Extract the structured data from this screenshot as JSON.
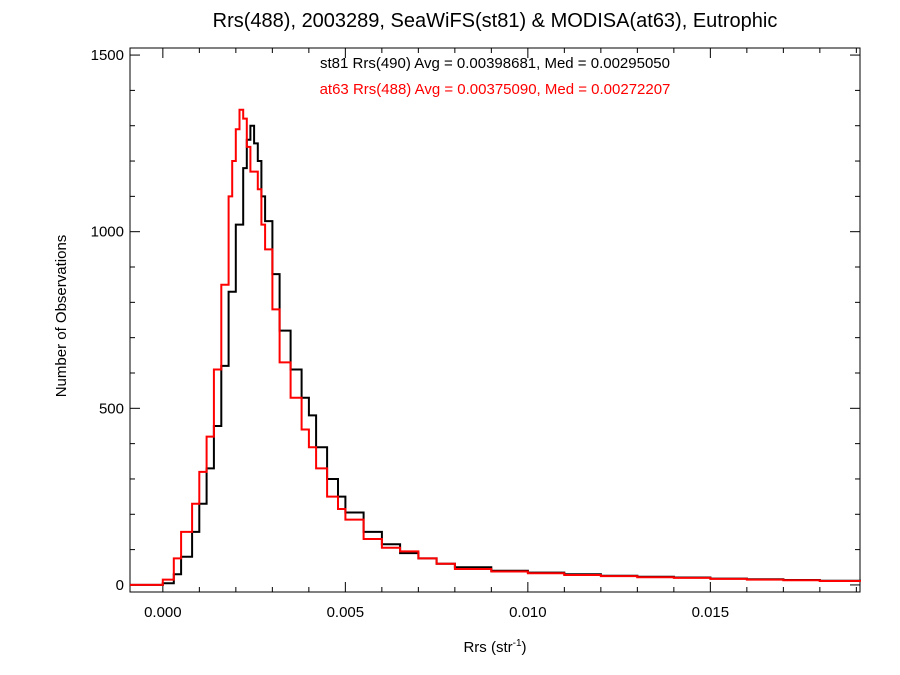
{
  "chart_data": {
    "type": "line",
    "step": true,
    "title": "Rrs(488), 2003289, SeaWiFS(st81) & MODISA(at63), Eutrophic",
    "xlabel_main": "Rrs (str",
    "xlabel_sup": "-1",
    "xlabel_close": ")",
    "ylabel": "Number of Observations",
    "xlim": [
      -0.0009,
      0.0191
    ],
    "ylim": [
      -20,
      1520
    ],
    "xticks": [
      0.0,
      0.005,
      0.01,
      0.015
    ],
    "xtick_labels": [
      "0.000",
      "0.005",
      "0.010",
      "0.015"
    ],
    "xminor_step": 0.001,
    "yticks": [
      0,
      500,
      1000,
      1500
    ],
    "ytick_labels": [
      "0",
      "500",
      "1000",
      "1500"
    ],
    "yminor_step": 100,
    "grid": false,
    "legend_position": "top-center",
    "series": [
      {
        "name": "st81 Rrs(490) Avg = 0.00398681, Med = 0.00295050",
        "color": "#000000",
        "points": [
          [
            -0.0009,
            0
          ],
          [
            0.0,
            5
          ],
          [
            0.0003,
            30
          ],
          [
            0.0005,
            80
          ],
          [
            0.0008,
            150
          ],
          [
            0.001,
            230
          ],
          [
            0.0012,
            330
          ],
          [
            0.0014,
            450
          ],
          [
            0.0016,
            620
          ],
          [
            0.0018,
            830
          ],
          [
            0.002,
            1020
          ],
          [
            0.0022,
            1180
          ],
          [
            0.0023,
            1260
          ],
          [
            0.0024,
            1300
          ],
          [
            0.0025,
            1250
          ],
          [
            0.0026,
            1200
          ],
          [
            0.0027,
            1100
          ],
          [
            0.0028,
            1030
          ],
          [
            0.003,
            880
          ],
          [
            0.0032,
            720
          ],
          [
            0.0035,
            610
          ],
          [
            0.0038,
            530
          ],
          [
            0.004,
            480
          ],
          [
            0.0042,
            390
          ],
          [
            0.0045,
            300
          ],
          [
            0.0048,
            250
          ],
          [
            0.005,
            205
          ],
          [
            0.0055,
            150
          ],
          [
            0.006,
            115
          ],
          [
            0.0065,
            90
          ],
          [
            0.007,
            75
          ],
          [
            0.0075,
            60
          ],
          [
            0.008,
            50
          ],
          [
            0.009,
            40
          ],
          [
            0.01,
            35
          ],
          [
            0.011,
            30
          ],
          [
            0.012,
            26
          ],
          [
            0.013,
            23
          ],
          [
            0.014,
            21
          ],
          [
            0.015,
            18
          ],
          [
            0.016,
            16
          ],
          [
            0.017,
            14
          ],
          [
            0.018,
            12
          ],
          [
            0.0191,
            10
          ]
        ]
      },
      {
        "name": "at63 Rrs(488) Avg = 0.00375090, Med = 0.00272207",
        "color": "#ff0000",
        "points": [
          [
            -0.0009,
            0
          ],
          [
            0.0,
            15
          ],
          [
            0.0003,
            75
          ],
          [
            0.0005,
            150
          ],
          [
            0.0008,
            230
          ],
          [
            0.001,
            320
          ],
          [
            0.0012,
            420
          ],
          [
            0.0014,
            610
          ],
          [
            0.0016,
            850
          ],
          [
            0.0018,
            1100
          ],
          [
            0.0019,
            1200
          ],
          [
            0.002,
            1290
          ],
          [
            0.0021,
            1345
          ],
          [
            0.0022,
            1320
          ],
          [
            0.0023,
            1240
          ],
          [
            0.0024,
            1170
          ],
          [
            0.0026,
            1120
          ],
          [
            0.0027,
            1020
          ],
          [
            0.0028,
            950
          ],
          [
            0.003,
            780
          ],
          [
            0.0032,
            630
          ],
          [
            0.0035,
            530
          ],
          [
            0.0038,
            440
          ],
          [
            0.004,
            390
          ],
          [
            0.0042,
            330
          ],
          [
            0.0045,
            250
          ],
          [
            0.0048,
            215
          ],
          [
            0.005,
            185
          ],
          [
            0.0055,
            130
          ],
          [
            0.006,
            105
          ],
          [
            0.0065,
            95
          ],
          [
            0.007,
            75
          ],
          [
            0.0075,
            60
          ],
          [
            0.008,
            45
          ],
          [
            0.009,
            38
          ],
          [
            0.01,
            33
          ],
          [
            0.011,
            28
          ],
          [
            0.012,
            25
          ],
          [
            0.013,
            22
          ],
          [
            0.014,
            20
          ],
          [
            0.015,
            17
          ],
          [
            0.016,
            15
          ],
          [
            0.017,
            13
          ],
          [
            0.018,
            11
          ],
          [
            0.0191,
            9
          ]
        ]
      }
    ]
  }
}
